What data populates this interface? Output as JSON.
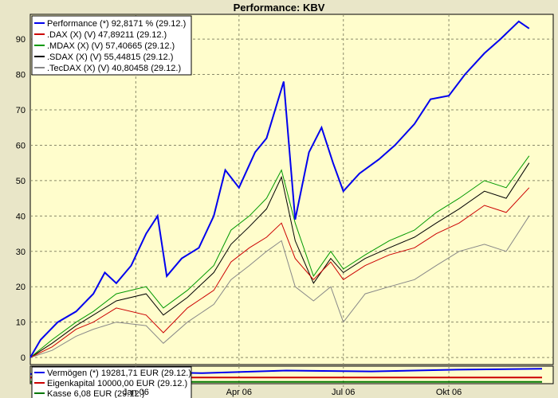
{
  "colors": {
    "background": "#e9e6c8",
    "plot_area": "#fffdcc",
    "grid": "#8a8a6a"
  },
  "chart_data": [
    {
      "type": "line",
      "title": "Performance: KBV",
      "xlabel": "",
      "ylabel": "",
      "x_range": [
        "2005-10-01",
        "2006-12-31"
      ],
      "ylim": [
        -2,
        97
      ],
      "y_ticks": [
        0,
        10,
        20,
        30,
        40,
        50,
        60,
        70,
        80,
        90
      ],
      "x_ticks": [
        {
          "label": "Jan 06",
          "date": "2006-01-01"
        },
        {
          "label": "Apr 06",
          "date": "2006-04-01"
        },
        {
          "label": "Jul 06",
          "date": "2006-07-01"
        },
        {
          "label": "Okt 06",
          "date": "2006-10-01"
        }
      ],
      "grid": true,
      "legend_position": "top-left",
      "series": [
        {
          "name": "Performance (*) 92,8171 % (29.12.)",
          "color": "#0000ee",
          "points": [
            [
              "2005-10-01",
              0
            ],
            [
              "2005-10-10",
              5
            ],
            [
              "2005-10-25",
              10
            ],
            [
              "2005-11-10",
              13
            ],
            [
              "2005-11-25",
              18
            ],
            [
              "2005-12-05",
              24
            ],
            [
              "2005-12-15",
              21
            ],
            [
              "2005-12-28",
              26
            ],
            [
              "2006-01-10",
              35
            ],
            [
              "2006-01-20",
              40
            ],
            [
              "2006-01-28",
              23
            ],
            [
              "2006-02-10",
              28
            ],
            [
              "2006-02-25",
              31
            ],
            [
              "2006-03-10",
              40
            ],
            [
              "2006-03-20",
              53
            ],
            [
              "2006-04-01",
              48
            ],
            [
              "2006-04-15",
              58
            ],
            [
              "2006-04-25",
              62
            ],
            [
              "2006-05-10",
              78
            ],
            [
              "2006-05-20",
              39
            ],
            [
              "2006-06-01",
              58
            ],
            [
              "2006-06-12",
              65
            ],
            [
              "2006-06-22",
              55
            ],
            [
              "2006-07-01",
              47
            ],
            [
              "2006-07-15",
              52
            ],
            [
              "2006-08-01",
              56
            ],
            [
              "2006-08-15",
              60
            ],
            [
              "2006-09-01",
              66
            ],
            [
              "2006-09-15",
              73
            ],
            [
              "2006-10-01",
              74
            ],
            [
              "2006-10-15",
              80
            ],
            [
              "2006-11-01",
              86
            ],
            [
              "2006-11-15",
              90
            ],
            [
              "2006-12-01",
              95
            ],
            [
              "2006-12-10",
              93
            ]
          ]
        },
        {
          "name": ".DAX (X) (V) 47,89211 (29.12.)",
          "color": "#cc0000",
          "points": [
            [
              "2005-10-01",
              0
            ],
            [
              "2005-10-20",
              3
            ],
            [
              "2005-11-10",
              8
            ],
            [
              "2005-11-25",
              10
            ],
            [
              "2005-12-15",
              14
            ],
            [
              "2006-01-10",
              12
            ],
            [
              "2006-01-25",
              7
            ],
            [
              "2006-02-15",
              14
            ],
            [
              "2006-03-10",
              19
            ],
            [
              "2006-03-25",
              27
            ],
            [
              "2006-04-10",
              31
            ],
            [
              "2006-04-25",
              34
            ],
            [
              "2006-05-08",
              38
            ],
            [
              "2006-05-20",
              28
            ],
            [
              "2006-06-05",
              22
            ],
            [
              "2006-06-20",
              27
            ],
            [
              "2006-07-01",
              22
            ],
            [
              "2006-07-20",
              26
            ],
            [
              "2006-08-10",
              29
            ],
            [
              "2006-09-01",
              31
            ],
            [
              "2006-09-20",
              35
            ],
            [
              "2006-10-10",
              38
            ],
            [
              "2006-11-01",
              43
            ],
            [
              "2006-11-20",
              41
            ],
            [
              "2006-12-10",
              48
            ]
          ]
        },
        {
          "name": ".MDAX (X) (V) 57,40665 (29.12.)",
          "color": "#009900",
          "points": [
            [
              "2005-10-01",
              0
            ],
            [
              "2005-10-20",
              5
            ],
            [
              "2005-11-10",
              10
            ],
            [
              "2005-11-25",
              13
            ],
            [
              "2005-12-15",
              18
            ],
            [
              "2006-01-10",
              20
            ],
            [
              "2006-01-25",
              14
            ],
            [
              "2006-02-15",
              19
            ],
            [
              "2006-03-10",
              26
            ],
            [
              "2006-03-25",
              36
            ],
            [
              "2006-04-10",
              40
            ],
            [
              "2006-04-25",
              45
            ],
            [
              "2006-05-08",
              53
            ],
            [
              "2006-05-20",
              38
            ],
            [
              "2006-06-05",
              23
            ],
            [
              "2006-06-20",
              30
            ],
            [
              "2006-07-01",
              25
            ],
            [
              "2006-07-20",
              29
            ],
            [
              "2006-08-10",
              33
            ],
            [
              "2006-09-01",
              36
            ],
            [
              "2006-09-20",
              41
            ],
            [
              "2006-10-10",
              45
            ],
            [
              "2006-11-01",
              50
            ],
            [
              "2006-11-20",
              48
            ],
            [
              "2006-12-10",
              57
            ]
          ]
        },
        {
          "name": ".SDAX (X) (V) 55,44815 (29.12.)",
          "color": "#000000",
          "points": [
            [
              "2005-10-01",
              0
            ],
            [
              "2005-10-20",
              4
            ],
            [
              "2005-11-10",
              9
            ],
            [
              "2005-11-25",
              12
            ],
            [
              "2005-12-15",
              16
            ],
            [
              "2006-01-10",
              18
            ],
            [
              "2006-01-25",
              12
            ],
            [
              "2006-02-15",
              17
            ],
            [
              "2006-03-10",
              24
            ],
            [
              "2006-03-25",
              32
            ],
            [
              "2006-04-10",
              37
            ],
            [
              "2006-04-25",
              42
            ],
            [
              "2006-05-08",
              51
            ],
            [
              "2006-05-20",
              33
            ],
            [
              "2006-06-05",
              21
            ],
            [
              "2006-06-20",
              28
            ],
            [
              "2006-07-01",
              24
            ],
            [
              "2006-07-20",
              28
            ],
            [
              "2006-08-10",
              31
            ],
            [
              "2006-09-01",
              34
            ],
            [
              "2006-09-20",
              38
            ],
            [
              "2006-10-10",
              42
            ],
            [
              "2006-11-01",
              47
            ],
            [
              "2006-11-20",
              45
            ],
            [
              "2006-12-10",
              55
            ]
          ]
        },
        {
          "name": ".TecDAX (X) (V) 40,80458 (29.12.)",
          "color": "#888888",
          "points": [
            [
              "2005-10-01",
              0
            ],
            [
              "2005-10-20",
              2
            ],
            [
              "2005-11-10",
              6
            ],
            [
              "2005-11-25",
              8
            ],
            [
              "2005-12-15",
              10
            ],
            [
              "2006-01-10",
              9
            ],
            [
              "2006-01-25",
              4
            ],
            [
              "2006-02-15",
              10
            ],
            [
              "2006-03-10",
              15
            ],
            [
              "2006-03-25",
              22
            ],
            [
              "2006-04-10",
              26
            ],
            [
              "2006-04-25",
              30
            ],
            [
              "2006-05-08",
              33
            ],
            [
              "2006-05-20",
              20
            ],
            [
              "2006-06-05",
              16
            ],
            [
              "2006-06-20",
              20
            ],
            [
              "2006-07-01",
              10
            ],
            [
              "2006-07-20",
              18
            ],
            [
              "2006-08-10",
              20
            ],
            [
              "2006-09-01",
              22
            ],
            [
              "2006-09-20",
              26
            ],
            [
              "2006-10-10",
              30
            ],
            [
              "2006-11-01",
              32
            ],
            [
              "2006-11-20",
              30
            ],
            [
              "2006-12-10",
              40
            ]
          ]
        }
      ]
    },
    {
      "type": "line",
      "title": "",
      "grid": true,
      "legend_position": "left",
      "series": [
        {
          "name": "Vermögen (*) 19281,71 EUR (29.12.)",
          "color": "#0000ee",
          "values_rel": [
            0.55,
            0.7,
            0.6,
            0.75,
            0.7,
            0.8,
            0.85
          ]
        },
        {
          "name": "Eigenkapital 10000,00 EUR (29.12.)",
          "color": "#cc0000",
          "values_rel": [
            0.35,
            0.35
          ]
        },
        {
          "name": "Kasse 6,08 EUR (29.12.)",
          "color": "#007700",
          "values_rel": [
            0.1,
            0.1
          ]
        }
      ]
    }
  ]
}
